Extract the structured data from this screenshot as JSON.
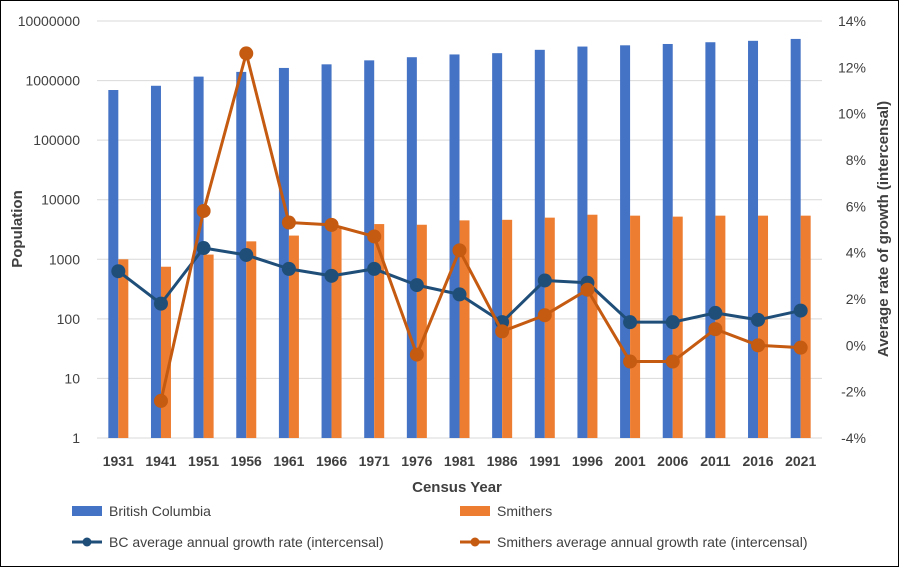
{
  "chart_data": {
    "type": "bar+line",
    "categories": [
      "1931",
      "1941",
      "1951",
      "1956",
      "1961",
      "1966",
      "1971",
      "1976",
      "1981",
      "1986",
      "1991",
      "1996",
      "2001",
      "2006",
      "2011",
      "2016",
      "2021"
    ],
    "xlabel": "Census Year",
    "ylabel": "Population",
    "y2label": "Average rate of growth (intercensal)",
    "y_scale": "log",
    "ylim": [
      1,
      10000000
    ],
    "y_ticks": [
      "1",
      "10",
      "100",
      "1000",
      "10000",
      "100000",
      "1000000",
      "10000000"
    ],
    "y2lim": [
      -4,
      14
    ],
    "y2_ticks": [
      "-4%",
      "-2%",
      "0%",
      "2%",
      "4%",
      "6%",
      "8%",
      "10%",
      "12%",
      "14%"
    ],
    "grid": true,
    "legend_position": "bottom",
    "series": [
      {
        "name": "British Columbia",
        "kind": "bar",
        "axis": "left",
        "color": "#4472c4",
        "values": [
          694263,
          817861,
          1165210,
          1398464,
          1629082,
          1873674,
          2184621,
          2466608,
          2744467,
          2883367,
          3282061,
          3724500,
          3907738,
          4113487,
          4400057,
          4648055,
          5000879
        ]
      },
      {
        "name": "Smithers",
        "kind": "bar",
        "axis": "left",
        "color": "#ed7d31",
        "values": [
          1000,
          750,
          1200,
          2000,
          2500,
          3300,
          3900,
          3800,
          4500,
          4600,
          5000,
          5600,
          5400,
          5200,
          5400,
          5400,
          5400
        ]
      },
      {
        "name": "BC average annual growth rate (intercensal)",
        "kind": "line",
        "axis": "right",
        "color": "#1f4e79",
        "values": [
          3.2,
          1.8,
          4.2,
          3.9,
          3.3,
          3.0,
          3.3,
          2.6,
          2.2,
          1.0,
          2.8,
          2.7,
          1.0,
          1.0,
          1.4,
          1.1,
          1.5
        ]
      },
      {
        "name": "Smithers average annual growth rate (intercensal)",
        "kind": "line",
        "axis": "right",
        "color": "#c55a11",
        "values": [
          null,
          -2.4,
          5.8,
          12.6,
          5.3,
          5.2,
          4.7,
          -0.4,
          4.1,
          0.6,
          1.3,
          2.4,
          -0.7,
          -0.7,
          0.7,
          0.0,
          -0.1
        ]
      }
    ]
  }
}
